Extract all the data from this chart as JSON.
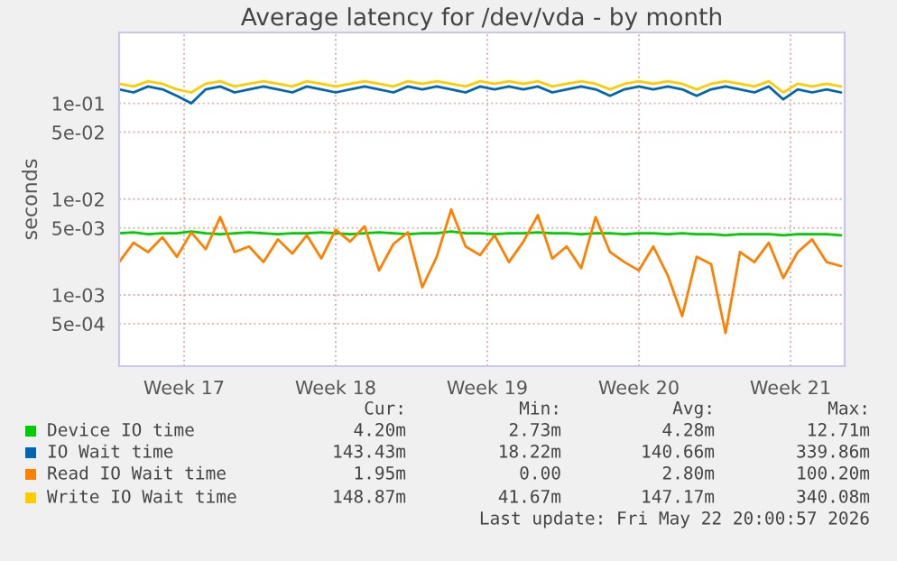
{
  "chart_data": {
    "type": "line",
    "title": "Average latency for /dev/vda - by month",
    "ylabel": "seconds",
    "log": "y",
    "grid": true,
    "legend": "bottom",
    "marker": "none",
    "line_style": "solid",
    "x": [
      "2026-04-19T08:00",
      "2026-04-20T00:00",
      "2026-04-20T16:00",
      "2026-04-21T08:00",
      "2026-04-22T00:00",
      "2026-04-22T16:00",
      "2026-04-23T08:00",
      "2026-04-24T00:00",
      "2026-04-24T16:00",
      "2026-04-25T08:00",
      "2026-04-26T00:00",
      "2026-04-26T16:00",
      "2026-04-27T08:00",
      "2026-04-28T00:00",
      "2026-04-28T16:00",
      "2026-04-29T08:00",
      "2026-04-30T00:00",
      "2026-04-30T16:00",
      "2026-05-01T08:00",
      "2026-05-02T00:00",
      "2026-05-02T16:00",
      "2026-05-03T08:00",
      "2026-05-04T00:00",
      "2026-05-04T16:00",
      "2026-05-05T08:00",
      "2026-05-06T00:00",
      "2026-05-06T16:00",
      "2026-05-07T08:00",
      "2026-05-08T00:00",
      "2026-05-08T16:00",
      "2026-05-09T08:00",
      "2026-05-10T00:00",
      "2026-05-10T16:00",
      "2026-05-11T08:00",
      "2026-05-12T00:00",
      "2026-05-12T16:00",
      "2026-05-13T08:00",
      "2026-05-14T00:00",
      "2026-05-14T16:00",
      "2026-05-15T08:00",
      "2026-05-16T00:00",
      "2026-05-16T16:00",
      "2026-05-17T08:00",
      "2026-05-18T00:00",
      "2026-05-18T16:00",
      "2026-05-19T08:00",
      "2026-05-20T00:00",
      "2026-05-20T16:00",
      "2026-05-21T08:00",
      "2026-05-22T00:00",
      "2026-05-22T16:00"
    ],
    "xlim": [
      "2026-04-19T08:00",
      "2026-05-22T20:00"
    ],
    "xticks": [
      {
        "value": "2026-04-22T08:00",
        "label": "Week 17"
      },
      {
        "value": "2026-04-29T08:00",
        "label": "Week 18"
      },
      {
        "value": "2026-05-06T08:00",
        "label": "Week 19"
      },
      {
        "value": "2026-05-13T08:00",
        "label": "Week 20"
      },
      {
        "value": "2026-05-20T08:00",
        "label": "Week 21"
      }
    ],
    "ylim": [
      0.00018,
      0.55
    ],
    "yticks": [
      {
        "value": 0.1,
        "label": "1e-01"
      },
      {
        "value": 0.05,
        "label": "5e-02"
      },
      {
        "value": 0.01,
        "label": "1e-02"
      },
      {
        "value": 0.005,
        "label": "5e-03"
      },
      {
        "value": 0.001,
        "label": "1e-03"
      },
      {
        "value": 0.0005,
        "label": "5e-04"
      }
    ],
    "series": [
      {
        "name": "Device IO time",
        "color": "#00cc00",
        "values": [
          0.0044,
          0.0045,
          0.0043,
          0.0044,
          0.0044,
          0.0046,
          0.0044,
          0.0043,
          0.0044,
          0.0045,
          0.0044,
          0.0043,
          0.0044,
          0.0044,
          0.0045,
          0.0044,
          0.0043,
          0.0044,
          0.0045,
          0.0044,
          0.0043,
          0.0044,
          0.0044,
          0.0046,
          0.0044,
          0.0044,
          0.0043,
          0.0044,
          0.0044,
          0.0045,
          0.0044,
          0.0044,
          0.0043,
          0.0044,
          0.0044,
          0.0043,
          0.0044,
          0.0044,
          0.0043,
          0.0044,
          0.0043,
          0.0043,
          0.0042,
          0.0043,
          0.0043,
          0.0043,
          0.0042,
          0.0043,
          0.0043,
          0.0043,
          0.0042
        ]
      },
      {
        "name": "IO Wait time",
        "color": "#0066b3",
        "values": [
          0.14,
          0.13,
          0.15,
          0.14,
          0.12,
          0.1,
          0.14,
          0.15,
          0.13,
          0.14,
          0.15,
          0.14,
          0.13,
          0.15,
          0.14,
          0.13,
          0.14,
          0.15,
          0.14,
          0.13,
          0.15,
          0.14,
          0.15,
          0.14,
          0.13,
          0.15,
          0.14,
          0.15,
          0.14,
          0.15,
          0.13,
          0.14,
          0.15,
          0.14,
          0.12,
          0.14,
          0.15,
          0.14,
          0.15,
          0.14,
          0.12,
          0.14,
          0.15,
          0.14,
          0.13,
          0.15,
          0.11,
          0.14,
          0.13,
          0.14,
          0.13
        ]
      },
      {
        "name": "Read IO Wait time",
        "color": "#ff8000",
        "values": [
          0.0022,
          0.0035,
          0.0028,
          0.004,
          0.0025,
          0.0045,
          0.003,
          0.0065,
          0.0028,
          0.0032,
          0.0022,
          0.0038,
          0.0027,
          0.0042,
          0.0024,
          0.0048,
          0.0036,
          0.0052,
          0.0018,
          0.0034,
          0.0045,
          0.0012,
          0.0025,
          0.0078,
          0.0032,
          0.0026,
          0.0042,
          0.0022,
          0.0036,
          0.0068,
          0.0024,
          0.0032,
          0.0019,
          0.0065,
          0.0028,
          0.0022,
          0.0018,
          0.0032,
          0.0016,
          0.0006,
          0.0025,
          0.0021,
          0.0004,
          0.0028,
          0.0022,
          0.0035,
          0.0015,
          0.0028,
          0.0038,
          0.0022,
          0.002
        ]
      },
      {
        "name": "Write IO Wait time",
        "color": "#ffcc00",
        "values": [
          0.16,
          0.15,
          0.17,
          0.16,
          0.14,
          0.13,
          0.16,
          0.17,
          0.15,
          0.16,
          0.17,
          0.16,
          0.15,
          0.17,
          0.16,
          0.15,
          0.16,
          0.17,
          0.16,
          0.15,
          0.17,
          0.16,
          0.17,
          0.16,
          0.15,
          0.17,
          0.16,
          0.17,
          0.16,
          0.17,
          0.15,
          0.16,
          0.17,
          0.16,
          0.14,
          0.16,
          0.17,
          0.16,
          0.17,
          0.16,
          0.14,
          0.16,
          0.17,
          0.16,
          0.15,
          0.17,
          0.13,
          0.16,
          0.15,
          0.16,
          0.15
        ]
      }
    ],
    "annotations": [
      "Cur:",
      "Min:",
      "Avg:",
      "Max:",
      "4.20m",
      "2.73m",
      "4.28m",
      "12.71m",
      "143.43m",
      "18.22m",
      "140.66m",
      "339.86m",
      "1.95m",
      "0.00",
      "2.80m",
      "100.20m",
      "148.87m",
      "41.67m",
      "147.17m",
      "340.08m",
      "Last update: Fri May 22 20:00:57 2026"
    ]
  }
}
